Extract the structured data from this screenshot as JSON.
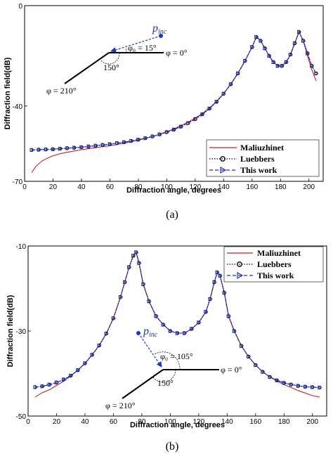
{
  "chart_data": [
    {
      "type": "line",
      "caption": "(a)",
      "xlabel": "Diffraction angle, degrees",
      "ylabel": "Diffraction field(dB)",
      "xlim": [
        0,
        210
      ],
      "ylim": [
        -70,
        0
      ],
      "xticks": [
        "0",
        "20",
        "40",
        "60",
        "80",
        "100",
        "120",
        "140",
        "160",
        "180",
        "200"
      ],
      "yticks": [
        "0",
        "-40",
        "-70"
      ],
      "ytick_values": [
        0,
        -40,
        -70
      ],
      "legend_position": "bottom-right",
      "series": [
        {
          "name": "Maliuzhinet",
          "style": "solid",
          "color": "#cc2222",
          "marker": "none",
          "x": [
            5,
            8,
            12,
            16,
            20,
            25,
            30,
            35,
            40,
            45,
            50,
            55,
            60,
            65,
            70,
            75,
            80,
            85,
            90,
            95,
            100,
            105,
            110,
            115,
            120,
            125,
            130,
            135,
            140,
            145,
            150,
            155,
            160,
            163,
            166,
            169,
            172,
            175,
            178,
            181,
            184,
            187,
            190,
            193,
            196,
            199,
            202,
            205
          ],
          "y": [
            -66.5,
            -64,
            -62,
            -60.8,
            -59.8,
            -59,
            -58.4,
            -57.9,
            -57.4,
            -57,
            -56.6,
            -56.2,
            -55.8,
            -55.3,
            -54.8,
            -54.2,
            -53.6,
            -52.9,
            -52.1,
            -51.2,
            -50.2,
            -49.1,
            -47.8,
            -46.4,
            -44.8,
            -43,
            -40.8,
            -38.2,
            -35,
            -31.3,
            -27,
            -22,
            -16.5,
            -12.5,
            -14,
            -17,
            -20,
            -22.5,
            -24,
            -24,
            -22.5,
            -19.5,
            -15,
            -10.5,
            -14,
            -20,
            -25.5,
            -30
          ]
        },
        {
          "name": "Luebbers",
          "style": "dotted",
          "color": "#000000",
          "marker": "circle",
          "x": [
            5,
            10,
            15,
            20,
            25,
            30,
            35,
            40,
            45,
            50,
            55,
            60,
            65,
            70,
            75,
            80,
            85,
            90,
            95,
            100,
            105,
            110,
            115,
            120,
            125,
            130,
            135,
            140,
            145,
            150,
            155,
            160,
            163,
            166,
            169,
            172,
            175,
            178,
            181,
            184,
            187,
            190,
            193,
            196,
            199,
            202,
            205
          ],
          "y": [
            -57.5,
            -57.4,
            -57.3,
            -57.2,
            -57,
            -56.8,
            -56.6,
            -56.4,
            -56.1,
            -55.8,
            -55.5,
            -55.2,
            -54.8,
            -54.4,
            -53.9,
            -53.4,
            -52.8,
            -52.1,
            -51.3,
            -50.4,
            -49.4,
            -48.2,
            -46.8,
            -45.2,
            -43.3,
            -41,
            -38.3,
            -35.1,
            -31.3,
            -27,
            -22,
            -16.5,
            -12.5,
            -14,
            -17,
            -20,
            -22.5,
            -24,
            -24,
            -22.5,
            -19.5,
            -15,
            -10.5,
            -14,
            -19,
            -24,
            -27
          ]
        },
        {
          "name": "This work",
          "style": "dashed",
          "color": "#1f35c4",
          "marker": "triangle",
          "x": [
            5,
            10,
            15,
            20,
            25,
            30,
            35,
            40,
            45,
            50,
            55,
            60,
            65,
            70,
            75,
            80,
            85,
            90,
            95,
            100,
            105,
            110,
            115,
            120,
            125,
            130,
            135,
            140,
            145,
            150,
            155,
            160,
            163,
            166,
            169,
            172,
            175,
            178,
            181,
            184,
            187,
            190,
            193,
            196,
            199,
            202,
            205
          ],
          "y": [
            -57.5,
            -57.4,
            -57.3,
            -57.2,
            -57,
            -56.8,
            -56.6,
            -56.4,
            -56.1,
            -55.8,
            -55.5,
            -55.2,
            -54.8,
            -54.4,
            -53.9,
            -53.4,
            -52.8,
            -52.1,
            -51.3,
            -50.4,
            -49.4,
            -48.2,
            -46.8,
            -45.2,
            -43.3,
            -41,
            -38.3,
            -35.1,
            -31.3,
            -27,
            -22,
            -16.5,
            -12.5,
            -14,
            -17,
            -20,
            -22.5,
            -24,
            -24,
            -22.5,
            -19.5,
            -15,
            -10.5,
            -14,
            -19,
            -24,
            -27
          ]
        }
      ],
      "inset": {
        "incident_label": "p",
        "incident_sub": "inc",
        "phi0_label": "φ₀ = 15°",
        "phi_zero_label": "φ = 0°",
        "wedge_angle_label": "150°",
        "phi_210_label": "φ = 210°"
      }
    },
    {
      "type": "line",
      "caption": "(b)",
      "xlabel": "Diffraction angle, degrees",
      "ylabel": "Diffraction field(dB)",
      "xlim": [
        0,
        210
      ],
      "ylim": [
        -50,
        -10
      ],
      "xticks": [
        "0",
        "20",
        "40",
        "60",
        "80",
        "100",
        "120",
        "140",
        "160",
        "180",
        "200"
      ],
      "yticks": [
        "-10",
        "-30",
        "-50"
      ],
      "ytick_values": [
        -10,
        -30,
        -50
      ],
      "legend_position": "top-right",
      "series": [
        {
          "name": "Maliuzhinet",
          "style": "solid",
          "color": "#cc2222",
          "marker": "none",
          "x": [
            5,
            10,
            15,
            20,
            25,
            30,
            35,
            40,
            45,
            50,
            55,
            60,
            65,
            68,
            71,
            74,
            76,
            78,
            81,
            85,
            90,
            95,
            100,
            105,
            110,
            115,
            120,
            125,
            128,
            131,
            133,
            135,
            138,
            141,
            145,
            150,
            155,
            160,
            165,
            170,
            175,
            180,
            185,
            190,
            195,
            200,
            205
          ],
          "y": [
            -45.5,
            -44.5,
            -43.8,
            -42.8,
            -41.8,
            -40.6,
            -39.2,
            -37.6,
            -35.6,
            -33.4,
            -30.6,
            -27,
            -22,
            -18.5,
            -15,
            -12.3,
            -11.5,
            -14,
            -19,
            -23,
            -26.5,
            -28.5,
            -30,
            -30.5,
            -30.5,
            -29.5,
            -28,
            -25.5,
            -22.5,
            -18.5,
            -16.2,
            -17,
            -21,
            -26.5,
            -30,
            -33.5,
            -36,
            -38,
            -39.6,
            -40.8,
            -41.8,
            -42.6,
            -43.3,
            -44,
            -44.6,
            -45.2,
            -45.5
          ]
        },
        {
          "name": "Luebbers",
          "style": "dotted",
          "color": "#000000",
          "marker": "circle",
          "x": [
            5,
            10,
            15,
            20,
            25,
            30,
            35,
            40,
            45,
            50,
            55,
            60,
            65,
            68,
            71,
            74,
            76,
            78,
            81,
            85,
            90,
            95,
            100,
            105,
            110,
            115,
            120,
            125,
            128,
            131,
            133,
            135,
            138,
            141,
            145,
            150,
            155,
            160,
            165,
            170,
            175,
            180,
            185,
            190,
            195,
            200,
            205
          ],
          "y": [
            -43.2,
            -43,
            -42.6,
            -42.1,
            -41.4,
            -40.5,
            -39.2,
            -37.6,
            -35.6,
            -33.4,
            -30.6,
            -27,
            -22,
            -18.5,
            -15,
            -12.3,
            -11.5,
            -14,
            -19,
            -23,
            -26.5,
            -28.5,
            -30,
            -30.5,
            -30.5,
            -29.5,
            -28,
            -25.5,
            -22.5,
            -18.5,
            -16.2,
            -17,
            -21,
            -26.5,
            -30,
            -33.5,
            -36,
            -38,
            -39.6,
            -40.8,
            -41.6,
            -42.2,
            -42.6,
            -42.9,
            -43.1,
            -43.2,
            -43.3
          ]
        },
        {
          "name": "This work",
          "style": "dashed",
          "color": "#1f35c4",
          "marker": "triangle",
          "x": [
            5,
            10,
            15,
            20,
            25,
            30,
            35,
            40,
            45,
            50,
            55,
            60,
            65,
            68,
            71,
            74,
            76,
            78,
            81,
            85,
            90,
            95,
            100,
            105,
            110,
            115,
            120,
            125,
            128,
            131,
            133,
            135,
            138,
            141,
            145,
            150,
            155,
            160,
            165,
            170,
            175,
            180,
            185,
            190,
            195,
            200,
            205
          ],
          "y": [
            -43.2,
            -43,
            -42.6,
            -42.1,
            -41.4,
            -40.5,
            -39.2,
            -37.6,
            -35.6,
            -33.4,
            -30.6,
            -27,
            -22,
            -18.5,
            -15,
            -12.3,
            -11.5,
            -14,
            -19,
            -23,
            -26.5,
            -28.5,
            -30,
            -30.5,
            -30.5,
            -29.5,
            -28,
            -25.5,
            -22.5,
            -18.5,
            -16.2,
            -17,
            -21,
            -26.5,
            -30,
            -33.5,
            -36,
            -38,
            -39.6,
            -40.8,
            -41.6,
            -42.2,
            -42.6,
            -42.9,
            -43.1,
            -43.2,
            -43.3
          ]
        }
      ],
      "inset": {
        "incident_label": "p",
        "incident_sub": "inc",
        "phi0_label": "φ₀ = 105°",
        "phi_zero_label": "φ = 0°",
        "wedge_angle_label": "150°",
        "phi_210_label": "φ = 210°"
      }
    }
  ]
}
